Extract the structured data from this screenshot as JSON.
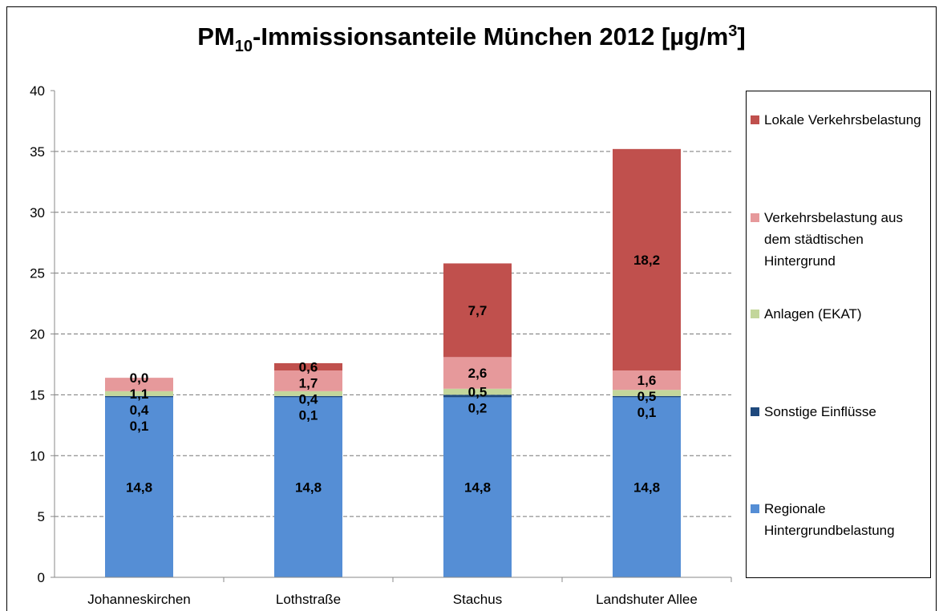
{
  "chart_data": {
    "type": "stacked_bar",
    "title": [
      "PM",
      "10",
      "-Immissionsanteile München 2012 [µg/m",
      "3",
      "]"
    ],
    "categories": [
      "Johanneskirchen",
      "Lothstraße",
      "Stachus",
      "Landshuter Allee"
    ],
    "series": [
      {
        "name": "Regionale Hintergrundbelastung",
        "color": "#558ed5",
        "values": [
          14.8,
          14.8,
          14.8,
          14.8
        ],
        "value_labels": [
          "14,8",
          "14,8",
          "14,8",
          "14,8"
        ]
      },
      {
        "name": "Sonstige Einflüsse",
        "color": "#1f497d",
        "values": [
          0.1,
          0.1,
          0.2,
          0.1
        ],
        "value_labels": [
          "0,1",
          "0,1",
          "0,2",
          "0,1"
        ]
      },
      {
        "name": "Anlagen (EKAT)",
        "color": "#c3d69b",
        "values": [
          0.4,
          0.4,
          0.5,
          0.5
        ],
        "value_labels": [
          "0,4",
          "0,4",
          "0,5",
          "0,5"
        ]
      },
      {
        "name": "Verkehrsbelastung aus dem städtischen Hintergrund",
        "color": "#e6999b",
        "values": [
          1.1,
          1.7,
          2.6,
          1.6
        ],
        "value_labels": [
          "1,1",
          "1,7",
          "2,6",
          "1,6"
        ]
      },
      {
        "name": "Lokale Verkehrsbelastung",
        "color": "#c0504d",
        "values": [
          0.0,
          0.6,
          7.7,
          18.2
        ],
        "value_labels": [
          "0,0",
          "0,6",
          "7,7",
          "18,2"
        ]
      }
    ],
    "ylim": [
      0,
      40
    ],
    "yticks": [
      0,
      5,
      10,
      15,
      20,
      25,
      30,
      35,
      40
    ],
    "grid": true,
    "legend": "right"
  }
}
